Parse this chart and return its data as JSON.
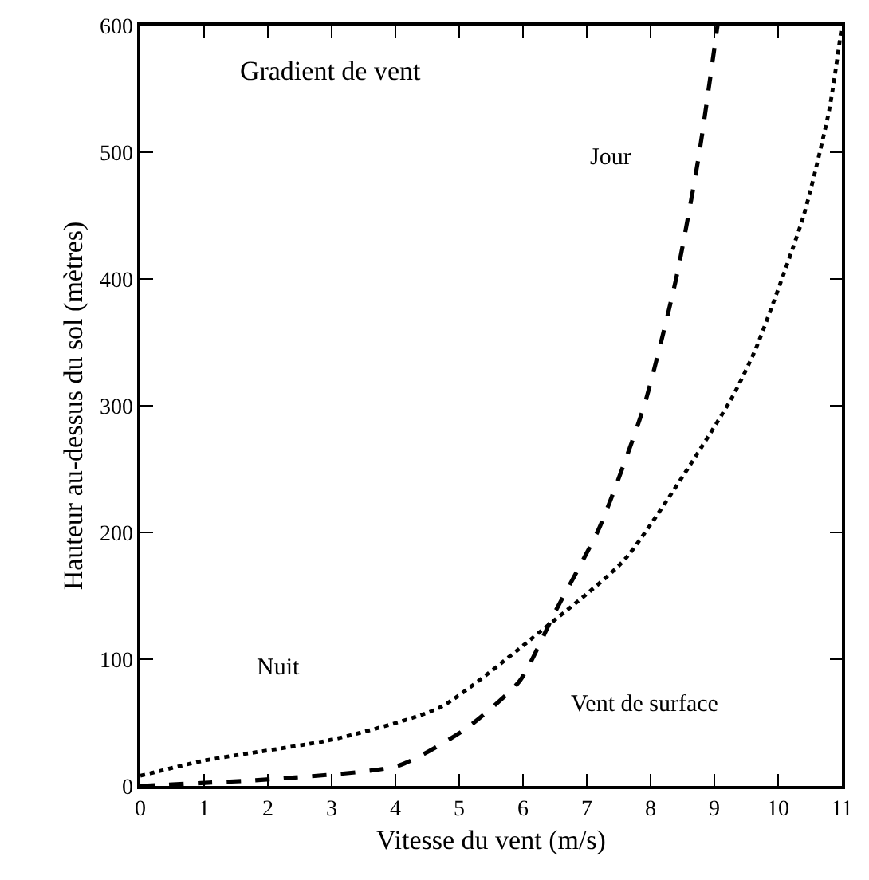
{
  "chart_data": {
    "type": "line",
    "title": "Gradient de vent",
    "xlabel": "Vitesse du vent (m/s)",
    "ylabel": "Hauteur au-dessus du sol (mètres)",
    "series": [
      {
        "name": "Jour",
        "color": "#000000",
        "line_style": "dashed",
        "x": [
          0,
          2.25,
          4.05,
          5.1,
          5.95,
          6.5,
          7.2,
          7.9,
          8.4,
          8.75,
          9.05
        ],
        "values": [
          0,
          6,
          16,
          45,
          83,
          137,
          204,
          300,
          400,
          495,
          600
        ]
      },
      {
        "name": "Nuit",
        "color": "#000000",
        "line_style": "dotted",
        "x": [
          0,
          1.0,
          3.05,
          4.7,
          6.35,
          7.6,
          9.25,
          9.65,
          10.4,
          10.8,
          11
        ],
        "values": [
          8,
          20,
          37,
          62,
          125,
          179,
          304,
          345,
          450,
          533,
          600
        ]
      }
    ],
    "annotations": [
      "Vent de surface"
    ],
    "xlim": [
      0,
      11
    ],
    "ylim": [
      0,
      600
    ],
    "xticks": [
      0,
      1,
      2,
      3,
      4,
      5,
      6,
      7,
      8,
      9,
      10,
      11
    ],
    "yticks": [
      0,
      100,
      200,
      300,
      400,
      500,
      600
    ],
    "grid": false,
    "legend": false,
    "marker": "none"
  }
}
